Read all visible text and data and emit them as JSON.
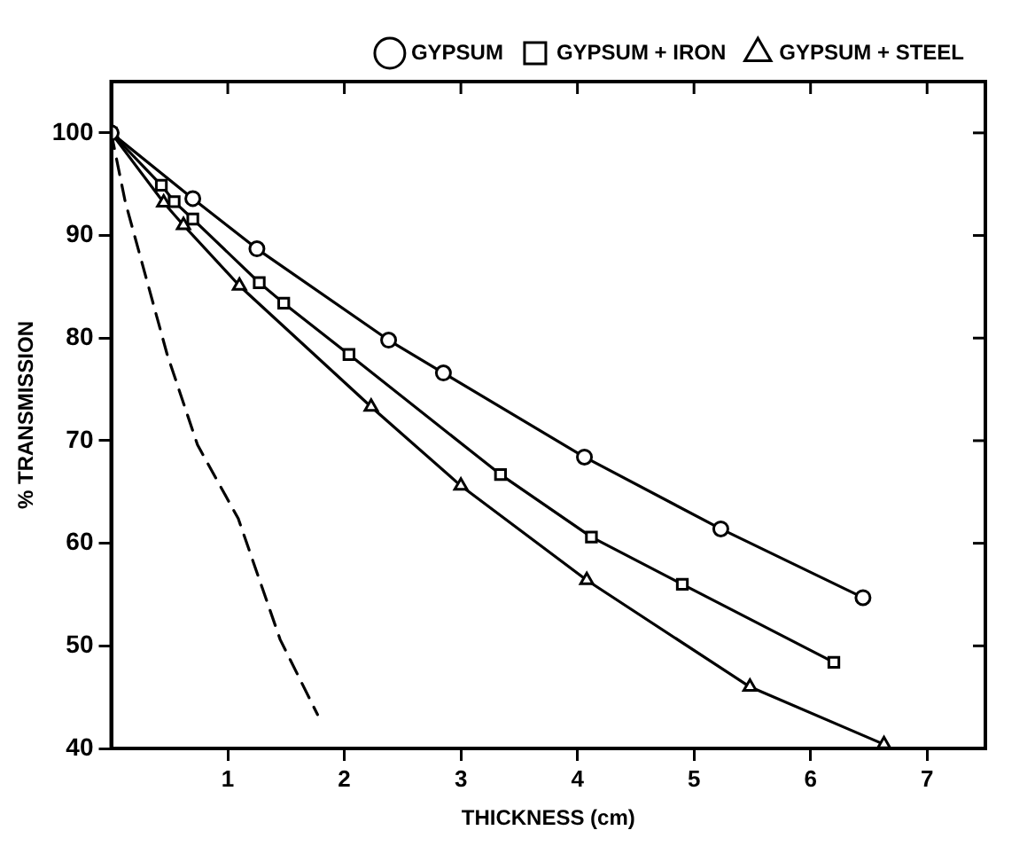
{
  "chart_data": {
    "type": "line",
    "xlabel": "THICKNESS (cm)",
    "ylabel": "% TRANSMISSION",
    "xlim": [
      0,
      7.5
    ],
    "xticks": [
      1,
      2,
      3,
      4,
      5,
      6,
      7
    ],
    "ylim": [
      40,
      105
    ],
    "yticks": [
      40,
      50,
      60,
      70,
      80,
      90,
      100
    ],
    "grid": false,
    "legend": "top right",
    "series": [
      {
        "name": "GYPSUM",
        "color": "#000000",
        "marker": "circle",
        "line_style": "solid",
        "x": [
          0,
          0.7,
          1.25,
          2.38,
          2.85,
          4.06,
          5.23,
          6.45
        ],
        "values": [
          100,
          93.6,
          88.7,
          79.8,
          76.6,
          68.4,
          61.4,
          54.7
        ]
      },
      {
        "name": "GYPSUM + IRON",
        "color": "#000000",
        "marker": "square",
        "line_style": "solid",
        "x": [
          0,
          0.43,
          0.54,
          0.7,
          1.27,
          1.48,
          2.04,
          3.34,
          4.12,
          4.9,
          6.2
        ],
        "values": [
          100,
          94.9,
          93.3,
          91.6,
          85.4,
          83.4,
          78.4,
          66.7,
          60.6,
          56.0,
          48.4
        ]
      },
      {
        "name": "GYPSUM + STEEL",
        "color": "#000000",
        "marker": "triangle",
        "line_style": "solid",
        "x": [
          0,
          0.45,
          0.62,
          1.1,
          2.23,
          3.0,
          4.08,
          5.48,
          6.63
        ],
        "values": [
          100,
          93.2,
          91.0,
          85.1,
          73.3,
          65.6,
          56.4,
          46.0,
          40.4
        ]
      },
      {
        "color": "#000000",
        "marker": "none",
        "line_style": "dashed",
        "x": [
          0,
          0.12,
          0.48,
          0.74,
          1.09,
          1.45,
          1.77
        ],
        "values": [
          100,
          93.3,
          78.4,
          69.6,
          62.4,
          50.6,
          43.3
        ]
      }
    ]
  }
}
